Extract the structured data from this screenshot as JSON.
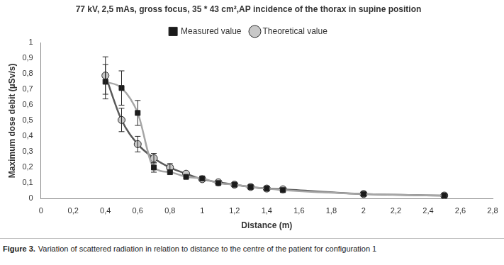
{
  "chart_data": {
    "type": "line",
    "title": "77 kV, 2,5 mAs, gross focus, 35 * 43 cm²,AP incidence of the thorax in supine position",
    "x_label": "Distance (m)",
    "y_label": "Maximum dose debit (µSv/s)",
    "caption_label": "Figure 3.",
    "caption": "Variation of scattered radiation in relation to distance to the centre of the patient for configuration 1",
    "x": [
      0.4,
      0.5,
      0.6,
      0.7,
      0.8,
      0.9,
      1.0,
      1.1,
      1.2,
      1.3,
      1.4,
      1.5,
      2.0,
      2.5
    ],
    "series": [
      {
        "name": "Measured value",
        "color": "#a6a6a6",
        "marker": "square",
        "line_style": "solid",
        "values": [
          0.75,
          0.71,
          0.55,
          0.2,
          0.17,
          0.14,
          0.13,
          0.1,
          0.09,
          0.075,
          0.065,
          0.055,
          0.03,
          0.02
        ],
        "errors": [
          0.11,
          0.11,
          0.08,
          0.03,
          null,
          null,
          null,
          null,
          null,
          null,
          null,
          null,
          null,
          null
        ]
      },
      {
        "name": "Theoretical value",
        "color": "#595959",
        "marker": "circle",
        "line_style": "solid",
        "values": [
          0.79,
          0.505,
          0.35,
          0.26,
          0.2,
          0.16,
          0.125,
          0.105,
          0.09,
          0.075,
          0.065,
          0.06,
          0.03,
          0.02
        ],
        "errors": [
          0.12,
          0.075,
          0.05,
          0.03,
          0.025,
          null,
          null,
          null,
          null,
          null,
          null,
          null,
          null,
          null
        ]
      }
    ],
    "xlim": [
      0,
      2.8
    ],
    "xticks": [
      0,
      {
        "value": 0.2,
        "label": "0,2"
      },
      {
        "value": 0.4,
        "label": "0,4"
      },
      {
        "value": 0.6,
        "label": "0,6"
      },
      {
        "value": 0.8,
        "label": "0,8"
      },
      1,
      {
        "value": 1.2,
        "label": "1,2"
      },
      {
        "value": 1.4,
        "label": "1,4"
      },
      {
        "value": 1.6,
        "label": "1,6"
      },
      {
        "value": 1.8,
        "label": "1,8"
      },
      2,
      {
        "value": 2.2,
        "label": "2,2"
      },
      {
        "value": 2.4,
        "label": "2,4"
      },
      {
        "value": 2.6,
        "label": "2,6"
      },
      {
        "value": 2.8,
        "label": "2,8"
      }
    ],
    "ylim": [
      0,
      1
    ],
    "yticks": [
      0,
      {
        "value": 0.1,
        "label": "0,1"
      },
      {
        "value": 0.2,
        "label": "0,2"
      },
      {
        "value": 0.3,
        "label": "0,3"
      },
      {
        "value": 0.4,
        "label": "0,4"
      },
      {
        "value": 0.5,
        "label": "0,5"
      },
      {
        "value": 0.6,
        "label": "0,6"
      },
      {
        "value": 0.7,
        "label": "0,7"
      },
      {
        "value": 0.8,
        "label": "0,8"
      },
      {
        "value": 0.9,
        "label": "0,9"
      },
      1
    ],
    "grid": false,
    "legend": "top"
  }
}
